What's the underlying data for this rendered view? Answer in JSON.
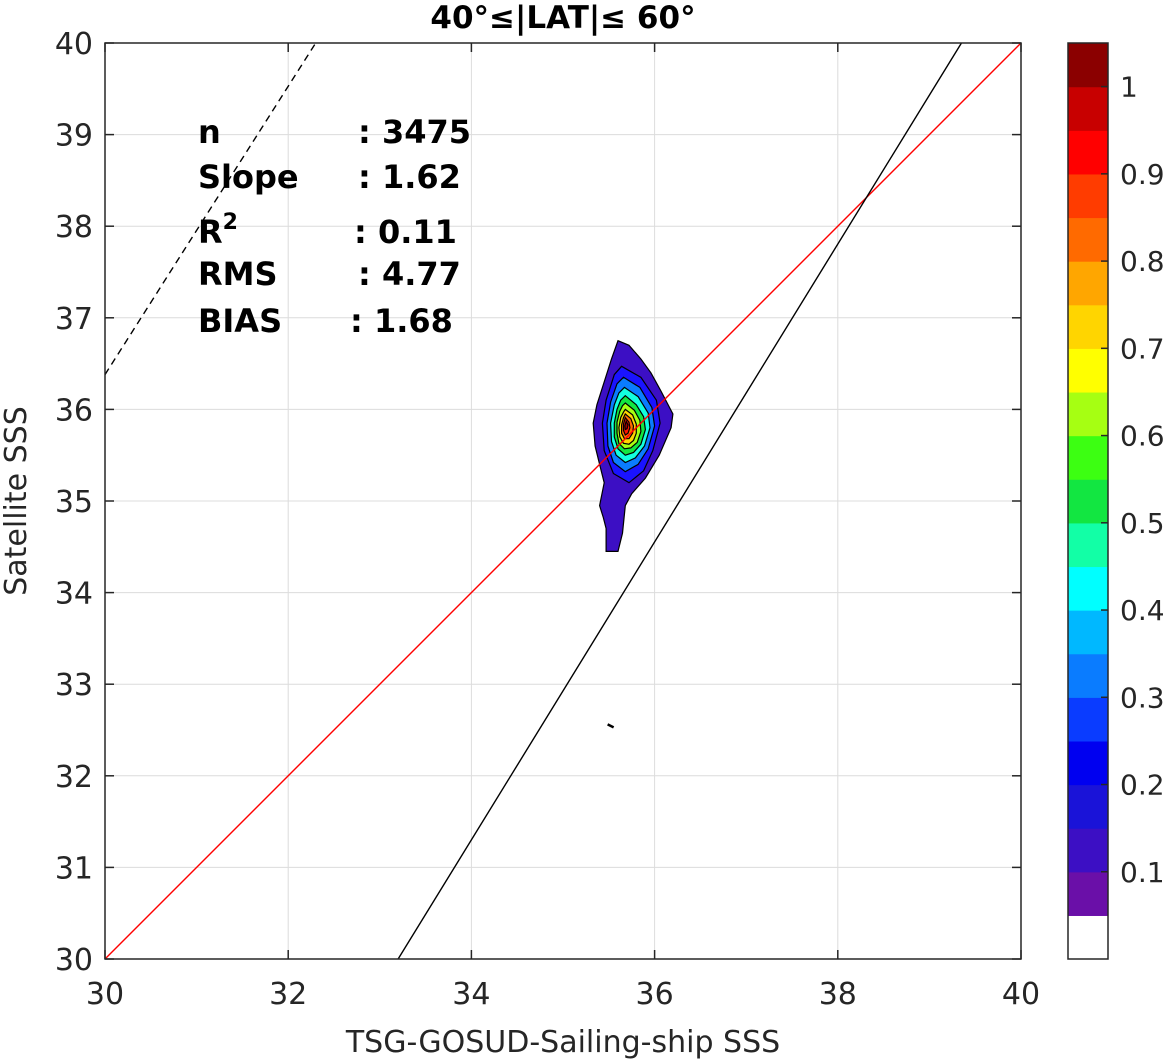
{
  "chart_data": {
    "type": "contour",
    "title": "40°≤|LAT|≤ 60°",
    "xlabel": "TSG-GOSUD-Sailing-ship SSS",
    "ylabel": "Satellite SSS",
    "xlim": [
      30,
      40
    ],
    "ylim": [
      30,
      40
    ],
    "xticks": [
      "30",
      "32",
      "34",
      "36",
      "38",
      "40"
    ],
    "yticks": [
      "30",
      "31",
      "32",
      "33",
      "34",
      "35",
      "36",
      "37",
      "38",
      "39",
      "40"
    ],
    "grid": true,
    "stats": [
      {
        "label": "n",
        "value": ": 3475"
      },
      {
        "label": "Slope",
        "value": ": 1.62"
      },
      {
        "label": "R",
        "sup": "2",
        "value": ": 0.11"
      },
      {
        "label": "RMS",
        "value": ": 4.77"
      },
      {
        "label": "BIAS",
        "value": ": 1.68"
      }
    ],
    "lines": [
      {
        "role": "one-to-one",
        "color": "#ff0000",
        "style": "solid",
        "points": [
          [
            30,
            30
          ],
          [
            40,
            40
          ]
        ]
      },
      {
        "role": "regression",
        "color": "#000000",
        "style": "solid",
        "slope": 1.62,
        "points": [
          [
            33.2,
            30
          ],
          [
            39.35,
            40
          ]
        ]
      },
      {
        "role": "dashed-reference",
        "color": "#000000",
        "style": "dashed",
        "points": [
          [
            30,
            36.38
          ],
          [
            32.3,
            40
          ]
        ]
      }
    ],
    "density_center": {
      "x": 35.68,
      "y": 35.85
    },
    "contour_levels": [
      {
        "level": 0.05,
        "color": "#3c0fc4",
        "points": [
          [
            35.6,
            36.75
          ],
          [
            35.72,
            36.7
          ],
          [
            35.85,
            36.55
          ],
          [
            35.96,
            36.4
          ],
          [
            36.07,
            36.2
          ],
          [
            36.2,
            35.95
          ],
          [
            36.18,
            35.8
          ],
          [
            36.05,
            35.5
          ],
          [
            35.9,
            35.25
          ],
          [
            35.75,
            35.08
          ],
          [
            35.68,
            34.95
          ],
          [
            35.65,
            34.65
          ],
          [
            35.6,
            34.45
          ],
          [
            35.47,
            34.45
          ],
          [
            35.47,
            34.7
          ],
          [
            35.44,
            34.82
          ],
          [
            35.4,
            34.95
          ],
          [
            35.45,
            35.2
          ],
          [
            35.4,
            35.4
          ],
          [
            35.35,
            35.6
          ],
          [
            35.33,
            35.85
          ],
          [
            35.37,
            36.05
          ],
          [
            35.45,
            36.3
          ],
          [
            35.53,
            36.55
          ]
        ]
      },
      {
        "level": 0.15,
        "color": "#1a13ff",
        "points": [
          [
            35.64,
            36.47
          ],
          [
            35.85,
            36.35
          ],
          [
            36.02,
            36.1
          ],
          [
            36.06,
            35.85
          ],
          [
            35.98,
            35.55
          ],
          [
            35.88,
            35.33
          ],
          [
            35.72,
            35.2
          ],
          [
            35.55,
            35.3
          ],
          [
            35.45,
            35.55
          ],
          [
            35.43,
            35.85
          ],
          [
            35.47,
            36.1
          ],
          [
            35.56,
            36.38
          ]
        ]
      },
      {
        "level": 0.25,
        "color": "#0a7cff",
        "points": [
          [
            35.66,
            36.35
          ],
          [
            35.84,
            36.24
          ],
          [
            35.97,
            36.02
          ],
          [
            36.0,
            35.82
          ],
          [
            35.93,
            35.57
          ],
          [
            35.82,
            35.4
          ],
          [
            35.68,
            35.32
          ],
          [
            35.55,
            35.42
          ],
          [
            35.49,
            35.6
          ],
          [
            35.48,
            35.85
          ],
          [
            35.52,
            36.08
          ],
          [
            35.59,
            36.28
          ]
        ]
      },
      {
        "level": 0.35,
        "color": "#12ffe0",
        "points": [
          [
            35.67,
            36.24
          ],
          [
            35.82,
            36.14
          ],
          [
            35.93,
            35.96
          ],
          [
            35.95,
            35.8
          ],
          [
            35.89,
            35.6
          ],
          [
            35.79,
            35.47
          ],
          [
            35.68,
            35.42
          ],
          [
            35.58,
            35.5
          ],
          [
            35.53,
            35.65
          ],
          [
            35.52,
            35.85
          ],
          [
            35.56,
            36.05
          ],
          [
            35.61,
            36.18
          ]
        ]
      },
      {
        "level": 0.45,
        "color": "#12e641",
        "points": [
          [
            35.68,
            36.15
          ],
          [
            35.8,
            36.05
          ],
          [
            35.88,
            35.92
          ],
          [
            35.9,
            35.78
          ],
          [
            35.85,
            35.62
          ],
          [
            35.77,
            35.53
          ],
          [
            35.68,
            35.5
          ],
          [
            35.6,
            35.57
          ],
          [
            35.56,
            35.7
          ],
          [
            35.56,
            35.85
          ],
          [
            35.59,
            36.0
          ],
          [
            35.63,
            36.1
          ]
        ]
      },
      {
        "level": 0.55,
        "color": "#a6ff12",
        "points": [
          [
            35.68,
            36.07
          ],
          [
            35.78,
            35.99
          ],
          [
            35.84,
            35.88
          ],
          [
            35.85,
            35.76
          ],
          [
            35.81,
            35.64
          ],
          [
            35.74,
            35.58
          ],
          [
            35.67,
            35.57
          ],
          [
            35.61,
            35.63
          ],
          [
            35.59,
            35.74
          ],
          [
            35.59,
            35.86
          ],
          [
            35.62,
            35.98
          ],
          [
            35.65,
            36.04
          ]
        ]
      },
      {
        "level": 0.65,
        "color": "#ffd500",
        "points": [
          [
            35.68,
            36.0
          ],
          [
            35.76,
            35.94
          ],
          [
            35.8,
            35.84
          ],
          [
            35.8,
            35.74
          ],
          [
            35.77,
            35.66
          ],
          [
            35.72,
            35.62
          ],
          [
            35.66,
            35.63
          ],
          [
            35.62,
            35.7
          ],
          [
            35.61,
            35.8
          ],
          [
            35.63,
            35.91
          ],
          [
            35.66,
            35.97
          ]
        ]
      },
      {
        "level": 0.75,
        "color": "#ff6a00",
        "points": [
          [
            35.68,
            35.95
          ],
          [
            35.74,
            35.9
          ],
          [
            35.77,
            35.82
          ],
          [
            35.76,
            35.74
          ],
          [
            35.72,
            35.68
          ],
          [
            35.67,
            35.68
          ],
          [
            35.64,
            35.74
          ],
          [
            35.64,
            35.83
          ],
          [
            35.66,
            35.91
          ]
        ]
      },
      {
        "level": 0.85,
        "color": "#ff1200",
        "points": [
          [
            35.68,
            35.91
          ],
          [
            35.72,
            35.86
          ],
          [
            35.73,
            35.8
          ],
          [
            35.71,
            35.74
          ],
          [
            35.68,
            35.72
          ],
          [
            35.66,
            35.77
          ],
          [
            35.66,
            35.84
          ]
        ]
      },
      {
        "level": 0.95,
        "color": "#9c0000",
        "points": [
          [
            35.69,
            35.87
          ],
          [
            35.71,
            35.83
          ],
          [
            35.7,
            35.79
          ],
          [
            35.68,
            35.78
          ],
          [
            35.675,
            35.82
          ]
        ]
      }
    ],
    "outlier_mark": {
      "x": 35.52,
      "y": 32.55
    },
    "colorbar": {
      "ticks": [
        "1",
        "0.9",
        "0.8",
        "0.7",
        "0.6",
        "0.5",
        "0.4",
        "0.3",
        "0.2",
        "0.1"
      ],
      "colors": [
        "#ffffff",
        "#6a0fa8",
        "#3c0fc4",
        "#1a13d8",
        "#0000f0",
        "#0a3cff",
        "#0a7cff",
        "#00b8ff",
        "#00ffff",
        "#12ffa6",
        "#12e641",
        "#3cff12",
        "#a6ff12",
        "#ffff00",
        "#ffd500",
        "#ffa600",
        "#ff6a00",
        "#ff3c00",
        "#ff0000",
        "#c80000",
        "#8b0000"
      ]
    }
  }
}
